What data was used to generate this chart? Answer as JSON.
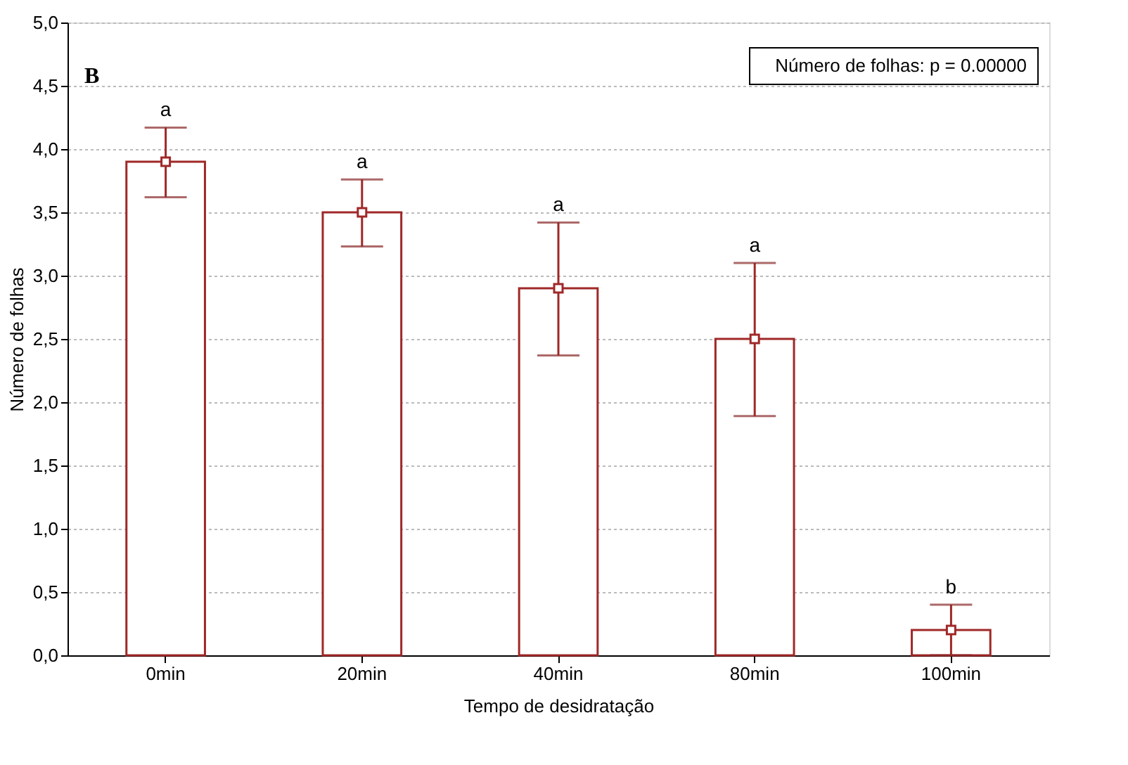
{
  "chart_data": {
    "type": "bar",
    "xlabel": "Tempo de desidratação",
    "ylabel": "Número de folhas",
    "categories": [
      "0min",
      "20min",
      "40min",
      "80min",
      "100min"
    ],
    "series": [
      {
        "color": "#ffffff",
        "values": [
          3.9,
          3.5,
          2.9,
          2.5,
          0.2
        ],
        "errors": [
          [
            3.62,
            4.17
          ],
          [
            3.23,
            3.76
          ],
          [
            2.37,
            3.42
          ],
          [
            1.89,
            3.1
          ],
          [
            0.0,
            0.4
          ]
        ]
      },
      {
        "type": "scatter",
        "color": "#a02828",
        "marker": "square",
        "x": [
          "0min",
          "20min",
          "40min",
          "80min",
          "100min"
        ],
        "values": [
          3.9,
          3.5,
          2.9,
          2.5,
          0.2
        ]
      }
    ],
    "grid": "y",
    "ylim": [
      0,
      5
    ],
    "yticks": [
      {
        "value": 0,
        "label": "0,0"
      },
      {
        "value": 0.5,
        "label": "0,5"
      },
      {
        "value": 1,
        "label": "1,0"
      },
      {
        "value": 1.5,
        "label": "1,5"
      },
      {
        "value": 2,
        "label": "2,0"
      },
      {
        "value": 2.5,
        "label": "2,5"
      },
      {
        "value": 3,
        "label": "3,0"
      },
      {
        "value": 3.5,
        "label": "3,5"
      },
      {
        "value": 4,
        "label": "4,0"
      },
      {
        "value": 4.5,
        "label": "4,5"
      },
      {
        "value": 5,
        "label": "5,0"
      }
    ],
    "annotations": [
      "B",
      "Número de folhas: p = 0.00000",
      {
        "text": "a",
        "x": "0min",
        "y": 4.17
      },
      {
        "text": "a",
        "x": "20min",
        "y": 3.76
      },
      {
        "text": "a",
        "x": "40min",
        "y": 3.42
      },
      {
        "text": "a",
        "x": "80min",
        "y": 3.1
      },
      {
        "text": "b",
        "x": "100min",
        "y": 0.4
      }
    ]
  }
}
